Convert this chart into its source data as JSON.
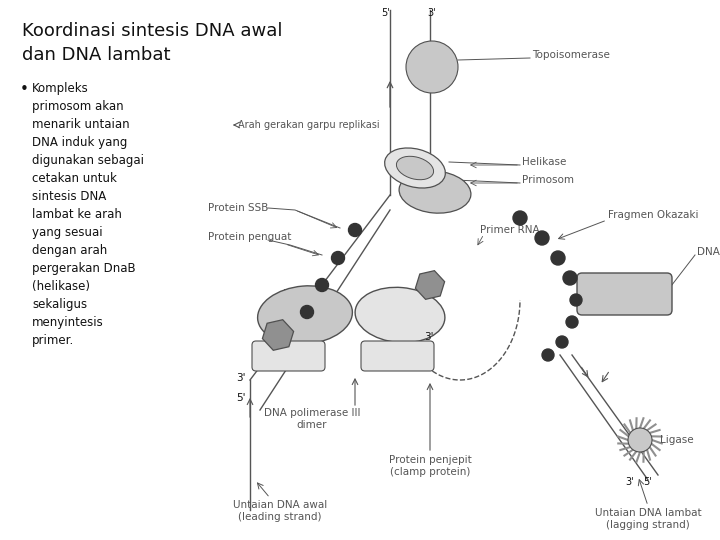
{
  "title_line1": "Koordinasi sintesis DNA awal",
  "title_line2": "dan DNA lambat",
  "bullet_text": "Kompleks\nprimosom akan\nmenarik untaian\nDNA induk yang\ndigunakan sebagai\ncetakan untuk\nsintesis DNA\nlambat ke arah\nyang sesuai\ndengan arah\npergerakan DnaB\n(helikase)\nsekaligus\nmenyintesis\nprimer.",
  "bg_color": "#ffffff",
  "title_color": "#111111",
  "text_color": "#111111",
  "light_gray": "#c8c8c8",
  "mid_gray": "#909090",
  "dark_gray": "#505050",
  "very_light": "#e4e4e4",
  "line_color": "#555555",
  "dot_color": "#333333",
  "label_color": "#555555",
  "diagram_labels": {
    "topoisomerase": "Topoisomerase",
    "helikase": "Helikase",
    "primosom": "Primosom",
    "primer_rna": "Primer RNA",
    "protein_ssb": "Protein SSB",
    "protein_penguat": "Protein penguat",
    "fragmen_okazaki": "Fragmen Okazaki",
    "dna_pol1": "DNA polimerase I",
    "dna_pol3": "DNA polimerase III\ndimer",
    "protein_penjepit": "Protein penjepit\n(clamp protein)",
    "ligase": "Ligase",
    "untaian_awal": "Untaian DNA awal\n(leading strand)",
    "untaian_lambat": "Untaian DNA lambat\n(lagging strand)",
    "arah_garpu": "Arah gerakan garpu replikasi"
  }
}
